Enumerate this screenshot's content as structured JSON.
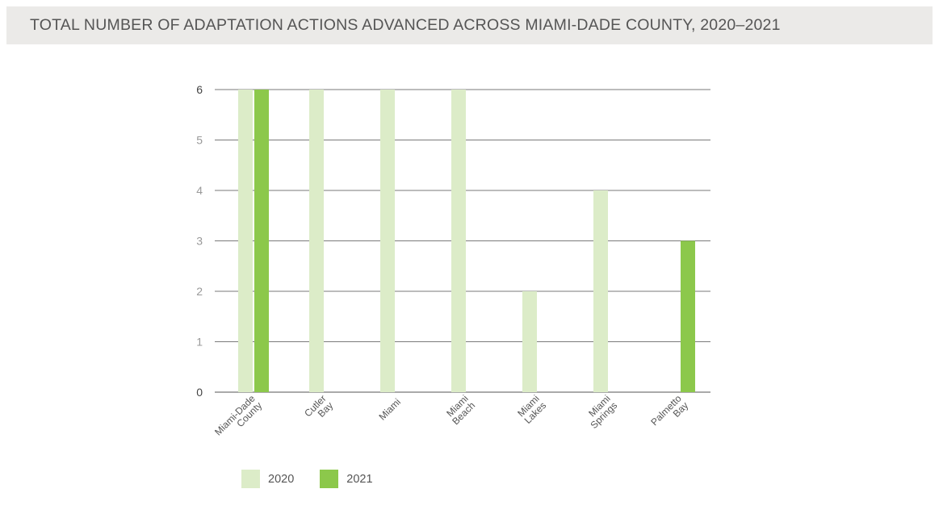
{
  "title": "TOTAL NUMBER OF ADAPTATION ACTIONS ADVANCED ACROSS MIAMI-DADE COUNTY, 2020–2021",
  "colors": {
    "2020": "#dcecc8",
    "2021": "#8cc84b",
    "grid": "#7a7a7a",
    "text": "#555555"
  },
  "chart_data": {
    "type": "bar",
    "categories": [
      [
        "Miami-Dade",
        "County"
      ],
      [
        "Cutler",
        "Bay"
      ],
      [
        "Miami"
      ],
      [
        "Miami",
        "Beach"
      ],
      [
        "Miami",
        "Lakes"
      ],
      [
        "Miami",
        "Springs"
      ],
      [
        "Palmetto",
        "Bay"
      ]
    ],
    "series": [
      {
        "name": "2020",
        "values": [
          6,
          6,
          6,
          6,
          2,
          4,
          0
        ]
      },
      {
        "name": "2021",
        "values": [
          6,
          0,
          0,
          0,
          0,
          0,
          3
        ]
      }
    ],
    "yticks": [
      "0",
      "1",
      "2",
      "3",
      "4",
      "5",
      "6"
    ],
    "ylim": [
      0,
      6
    ],
    "grid": true,
    "legend_position": "bottom-left"
  },
  "legend": [
    {
      "label": "2020"
    },
    {
      "label": "2021"
    }
  ]
}
